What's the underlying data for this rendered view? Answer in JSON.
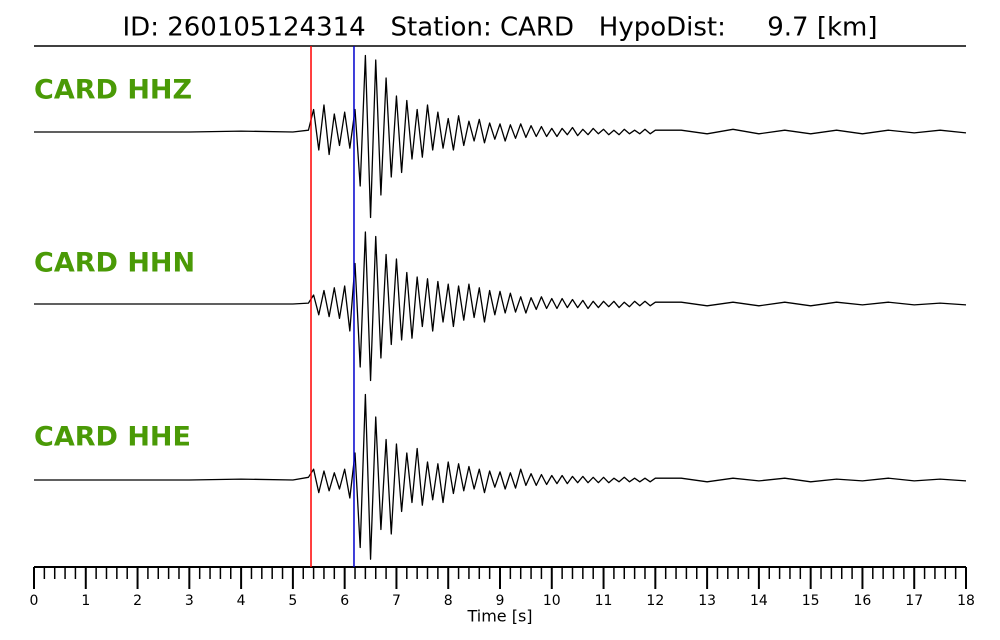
{
  "chart_data": {
    "type": "line",
    "title": "ID: 260105124314   Station: CARD   HypoDist:     9.7 [km]",
    "xlabel": "Time [s]",
    "xlim": [
      0,
      18
    ],
    "xticks": [
      0,
      1,
      2,
      3,
      4,
      5,
      6,
      7,
      8,
      9,
      10,
      11,
      12,
      13,
      14,
      15,
      16,
      17,
      18
    ],
    "xminorticks": [
      0.2,
      0.4,
      0.6,
      0.8,
      1.2,
      1.4,
      1.6,
      1.8,
      2.2,
      2.4,
      2.6,
      2.8,
      3.2,
      3.4,
      3.6,
      3.8,
      4.2,
      4.4,
      4.6,
      4.8,
      5.2,
      5.4,
      5.6,
      5.8,
      6.2,
      6.4,
      6.6,
      6.8,
      7.2,
      7.4,
      7.6,
      7.8,
      8.2,
      8.4,
      8.6,
      8.8,
      9.2,
      9.4,
      9.6,
      9.8,
      10.2,
      10.4,
      10.6,
      10.8,
      11.2,
      11.4,
      11.6,
      11.8,
      12.2,
      12.4,
      12.6,
      12.8,
      13.2,
      13.4,
      13.6,
      13.8,
      14.2,
      14.4,
      14.6,
      14.8,
      15.2,
      15.4,
      15.6,
      15.8,
      16.2,
      16.4,
      16.6,
      16.8,
      17.2,
      17.4,
      17.6,
      17.8
    ],
    "ylim": [
      -100,
      100
    ],
    "label_color": "#4a9a06",
    "picks": [
      {
        "value": 5.35,
        "color": "#ff0000"
      },
      {
        "value": 6.18,
        "color": "#0000cc"
      }
    ],
    "x": [
      0,
      1,
      2,
      3,
      4,
      5,
      5.3,
      5.4,
      5.5,
      5.6,
      5.7,
      5.8,
      5.9,
      6.0,
      6.1,
      6.2,
      6.3,
      6.4,
      6.5,
      6.6,
      6.7,
      6.8,
      6.9,
      7.0,
      7.1,
      7.2,
      7.3,
      7.4,
      7.5,
      7.6,
      7.7,
      7.8,
      7.9,
      8.0,
      8.1,
      8.2,
      8.3,
      8.4,
      8.5,
      8.6,
      8.7,
      8.8,
      8.9,
      9.0,
      9.1,
      9.2,
      9.3,
      9.4,
      9.5,
      9.6,
      9.7,
      9.8,
      9.9,
      10.0,
      10.1,
      10.2,
      10.3,
      10.4,
      10.5,
      10.6,
      10.7,
      10.8,
      10.9,
      11.0,
      11.1,
      11.2,
      11.3,
      11.4,
      11.5,
      11.6,
      11.7,
      11.8,
      11.9,
      12.0,
      12.5,
      13,
      13.5,
      14,
      14.5,
      15,
      15.5,
      16,
      16.5,
      17,
      17.5,
      18
    ],
    "series": [
      {
        "name": "CARD HHZ",
        "color": "#000000",
        "values": [
          0,
          0,
          0,
          0,
          1,
          0,
          2,
          25,
          -20,
          30,
          -25,
          20,
          -15,
          22,
          -18,
          25,
          -60,
          85,
          -95,
          80,
          -70,
          60,
          -50,
          40,
          -45,
          35,
          -30,
          25,
          -28,
          30,
          -20,
          22,
          -18,
          15,
          -20,
          18,
          -15,
          12,
          -10,
          14,
          -12,
          10,
          -8,
          9,
          -10,
          8,
          -7,
          9,
          -6,
          7,
          -5,
          6,
          -5,
          4,
          -5,
          4,
          -3,
          5,
          -4,
          3,
          -3,
          4,
          -2,
          3,
          -3,
          2,
          -3,
          3,
          -2,
          2,
          -2,
          3,
          -2,
          2,
          2,
          -2,
          3,
          -2,
          2,
          -2,
          2,
          -2,
          2,
          -1,
          2,
          -1
        ]
      },
      {
        "name": "CARD HHN",
        "color": "#000000",
        "values": [
          0,
          0,
          0,
          0,
          0,
          0,
          1,
          10,
          -12,
          15,
          -14,
          18,
          -16,
          20,
          -30,
          45,
          -70,
          80,
          -85,
          75,
          -60,
          55,
          -45,
          50,
          -40,
          35,
          -38,
          30,
          -25,
          28,
          -30,
          25,
          -20,
          22,
          -25,
          20,
          -18,
          22,
          -15,
          18,
          -20,
          15,
          -12,
          14,
          -10,
          12,
          -9,
          8,
          -10,
          7,
          -6,
          8,
          -5,
          6,
          -5,
          6,
          -4,
          5,
          -4,
          4,
          -5,
          3,
          -4,
          3,
          -3,
          3,
          -4,
          2,
          -3,
          3,
          -2,
          3,
          -2,
          2,
          2,
          -2,
          2,
          -2,
          2,
          -2,
          2,
          -1,
          2,
          -1,
          1,
          -1
        ]
      },
      {
        "name": "CARD HHE",
        "color": "#000000",
        "values": [
          0,
          0,
          0,
          0,
          1,
          0,
          3,
          12,
          -14,
          10,
          -12,
          8,
          -10,
          12,
          -20,
          30,
          -75,
          95,
          -88,
          70,
          -55,
          45,
          -60,
          40,
          -35,
          30,
          -25,
          35,
          -28,
          20,
          -22,
          18,
          -25,
          20,
          -15,
          18,
          -12,
          15,
          -10,
          12,
          -14,
          10,
          -8,
          9,
          -10,
          8,
          -9,
          12,
          -6,
          7,
          -6,
          6,
          -5,
          5,
          -4,
          5,
          -4,
          4,
          -3,
          4,
          -3,
          3,
          -3,
          3,
          -3,
          2,
          -2,
          3,
          -2,
          2,
          -2,
          2,
          -2,
          2,
          2,
          -2,
          2,
          -1,
          2,
          -2,
          1,
          -1,
          2,
          -1,
          1,
          -1
        ]
      }
    ]
  }
}
